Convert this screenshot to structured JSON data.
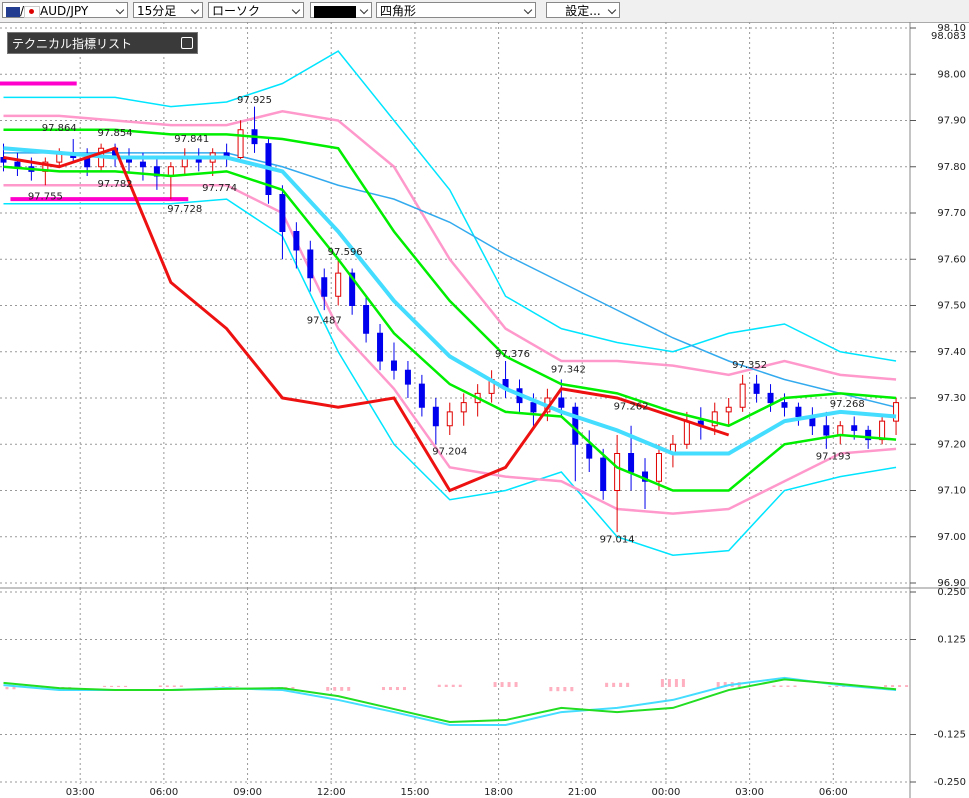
{
  "toolbar": {
    "symbol": "AUD/JPY",
    "timeframe": "15分足",
    "chart_style": "ローソク",
    "shape": "四角形",
    "settings_button": "設定..."
  },
  "panel": {
    "title": "テクニカル指標リスト"
  },
  "chart_data": [
    {
      "type": "candlestick",
      "xlim": [
        -0.5,
        130
      ],
      "ylim": [
        96.9,
        98.1
      ],
      "yticks": [
        {
          "value": 98.1,
          "label": "98.10"
        },
        {
          "value": 98.0,
          "label": "98.00"
        },
        {
          "value": 97.9,
          "label": "97.90"
        },
        {
          "value": 97.8,
          "label": "97.80"
        },
        {
          "value": 97.7,
          "label": "97.70"
        },
        {
          "value": 97.6,
          "label": "97.60"
        },
        {
          "value": 97.5,
          "label": "97.50"
        },
        {
          "value": 97.4,
          "label": "97.40"
        },
        {
          "value": 97.3,
          "label": "97.30"
        },
        {
          "value": 97.2,
          "label": "97.20"
        },
        {
          "value": 97.1,
          "label": "97.10"
        },
        {
          "value": 97.0,
          "label": "97.00"
        },
        {
          "value": 96.9,
          "label": "96.90"
        }
      ],
      "xticks": [
        11,
        23,
        35,
        47,
        59,
        71,
        83,
        95,
        107,
        119
      ],
      "price_marker": 98.083,
      "up_color": "#e00000",
      "down_color": "#0000ee",
      "x": [
        0,
        2,
        4,
        6,
        8,
        10,
        12,
        14,
        16,
        18,
        20,
        22,
        24,
        26,
        28,
        30,
        32,
        34,
        36,
        38,
        40,
        42,
        44,
        46,
        48,
        50,
        52,
        54,
        56,
        58,
        60,
        62,
        64,
        66,
        68,
        70,
        72,
        74,
        76,
        78,
        80,
        82,
        84,
        86,
        88,
        90,
        92,
        94,
        96,
        98,
        100,
        102,
        104,
        106,
        108,
        110,
        112,
        114,
        116,
        118,
        120,
        122,
        124,
        126,
        128
      ],
      "open": [
        97.82,
        97.81,
        97.8,
        97.79,
        97.81,
        97.83,
        97.82,
        97.8,
        97.84,
        97.82,
        97.81,
        97.8,
        97.78,
        97.8,
        97.82,
        97.81,
        97.83,
        97.82,
        97.88,
        97.85,
        97.74,
        97.66,
        97.62,
        97.56,
        97.52,
        97.57,
        97.5,
        97.44,
        97.38,
        97.36,
        97.33,
        97.28,
        97.24,
        97.27,
        97.29,
        97.31,
        97.34,
        97.32,
        97.29,
        97.27,
        97.3,
        97.28,
        97.2,
        97.17,
        97.1,
        97.18,
        97.14,
        97.12,
        97.18,
        97.2,
        97.25,
        97.24,
        97.27,
        97.28,
        97.33,
        97.31,
        97.29,
        97.28,
        97.26,
        97.24,
        97.22,
        97.24,
        97.23,
        97.21,
        97.25
      ],
      "high": [
        97.85,
        97.83,
        97.82,
        97.82,
        97.84,
        97.86,
        97.84,
        97.85,
        97.85,
        97.84,
        97.83,
        97.82,
        97.81,
        97.84,
        97.84,
        97.84,
        97.85,
        97.9,
        97.93,
        97.86,
        97.76,
        97.68,
        97.64,
        97.58,
        97.6,
        97.58,
        97.52,
        97.46,
        97.42,
        97.38,
        97.35,
        97.3,
        97.29,
        97.31,
        97.33,
        97.36,
        97.38,
        97.34,
        97.31,
        97.32,
        97.34,
        97.29,
        97.23,
        97.19,
        97.22,
        97.24,
        97.17,
        97.2,
        97.22,
        97.27,
        97.28,
        97.29,
        97.3,
        97.35,
        97.35,
        97.33,
        97.31,
        97.29,
        97.28,
        97.27,
        97.25,
        97.26,
        97.24,
        97.26,
        97.3
      ],
      "low": [
        97.79,
        97.78,
        97.77,
        97.76,
        97.8,
        97.81,
        97.78,
        97.79,
        97.8,
        97.79,
        97.77,
        97.75,
        97.73,
        97.78,
        97.79,
        97.78,
        97.8,
        97.81,
        97.83,
        97.72,
        97.6,
        97.58,
        97.53,
        97.49,
        97.5,
        97.48,
        97.42,
        97.36,
        97.34,
        97.3,
        97.26,
        97.2,
        97.22,
        97.24,
        97.26,
        97.29,
        97.3,
        97.27,
        97.24,
        97.25,
        97.26,
        97.12,
        97.14,
        97.08,
        97.01,
        97.1,
        97.06,
        97.1,
        97.15,
        97.19,
        97.21,
        97.22,
        97.24,
        97.27,
        97.29,
        97.27,
        97.26,
        97.24,
        97.22,
        97.19,
        97.2,
        97.21,
        97.19,
        97.2,
        97.22
      ],
      "close": [
        97.81,
        97.8,
        97.79,
        97.81,
        97.83,
        97.82,
        97.8,
        97.84,
        97.82,
        97.81,
        97.8,
        97.78,
        97.8,
        97.82,
        97.81,
        97.83,
        97.82,
        97.88,
        97.85,
        97.74,
        97.66,
        97.62,
        97.56,
        97.52,
        97.57,
        97.5,
        97.44,
        97.38,
        97.36,
        97.33,
        97.28,
        97.24,
        97.27,
        97.29,
        97.31,
        97.34,
        97.32,
        97.29,
        97.27,
        97.3,
        97.28,
        97.2,
        97.17,
        97.1,
        97.18,
        97.14,
        97.12,
        97.18,
        97.2,
        97.25,
        97.24,
        97.27,
        97.28,
        97.33,
        97.31,
        97.29,
        97.28,
        97.26,
        97.24,
        97.22,
        97.24,
        97.23,
        97.21,
        97.25,
        97.29
      ],
      "series": [
        {
          "color": "#00e5ff",
          "width": 1.5,
          "x": [
            0,
            8,
            16,
            24,
            32,
            40,
            48,
            56,
            64,
            72,
            80,
            88,
            96,
            104,
            112,
            120,
            128
          ],
          "values": [
            97.95,
            97.95,
            97.95,
            97.93,
            97.94,
            97.98,
            98.05,
            97.9,
            97.75,
            97.52,
            97.45,
            97.42,
            97.4,
            97.44,
            97.46,
            97.4,
            97.38
          ]
        },
        {
          "color": "#00e5ff",
          "width": 1.5,
          "x": [
            0,
            8,
            16,
            24,
            32,
            40,
            48,
            56,
            64,
            72,
            80,
            88,
            96,
            104,
            112,
            120,
            128
          ],
          "values": [
            97.72,
            97.72,
            97.72,
            97.72,
            97.73,
            97.65,
            97.4,
            97.2,
            97.08,
            97.1,
            97.14,
            97.0,
            96.96,
            96.97,
            97.1,
            97.13,
            97.15
          ]
        },
        {
          "color": "#ff99cc",
          "width": 2.5,
          "x": [
            0,
            8,
            16,
            24,
            32,
            40,
            48,
            56,
            64,
            72,
            80,
            88,
            96,
            104,
            112,
            120,
            128
          ],
          "values": [
            97.91,
            97.91,
            97.9,
            97.89,
            97.89,
            97.92,
            97.9,
            97.8,
            97.6,
            97.45,
            97.38,
            97.38,
            97.37,
            97.35,
            97.38,
            97.35,
            97.34
          ]
        },
        {
          "color": "#ff99cc",
          "width": 2.5,
          "x": [
            0,
            8,
            16,
            24,
            32,
            40,
            48,
            56,
            64,
            72,
            80,
            88,
            96,
            104,
            112,
            120,
            128
          ],
          "values": [
            97.76,
            97.76,
            97.76,
            97.76,
            97.76,
            97.7,
            97.45,
            97.32,
            97.15,
            97.13,
            97.12,
            97.06,
            97.05,
            97.06,
            97.12,
            97.18,
            97.19
          ]
        },
        {
          "color": "#33aaee",
          "width": 1.5,
          "x": [
            0,
            8,
            16,
            24,
            32,
            40,
            48,
            56,
            64,
            72,
            80,
            88,
            96,
            104,
            112,
            120,
            128
          ],
          "values": [
            97.83,
            97.83,
            97.83,
            97.83,
            97.83,
            97.8,
            97.76,
            97.73,
            97.68,
            97.61,
            97.55,
            97.49,
            97.43,
            97.38,
            97.34,
            97.31,
            97.28
          ]
        },
        {
          "color": "#00ee00",
          "width": 2.5,
          "x": [
            0,
            8,
            16,
            24,
            32,
            40,
            48,
            56,
            64,
            72,
            80,
            88,
            96,
            104,
            112,
            120,
            128
          ],
          "values": [
            97.88,
            97.88,
            97.88,
            97.87,
            97.87,
            97.86,
            97.84,
            97.66,
            97.51,
            97.39,
            97.33,
            97.31,
            97.27,
            97.24,
            97.3,
            97.31,
            97.3
          ]
        },
        {
          "color": "#00ee00",
          "width": 2.5,
          "x": [
            0,
            8,
            16,
            24,
            32,
            40,
            48,
            56,
            64,
            72,
            80,
            88,
            96,
            104,
            112,
            120,
            128
          ],
          "values": [
            97.8,
            97.79,
            97.79,
            97.78,
            97.79,
            97.75,
            97.6,
            97.44,
            97.33,
            97.27,
            97.26,
            97.15,
            97.1,
            97.1,
            97.2,
            97.22,
            97.21
          ]
        },
        {
          "color": "#44ddff",
          "width": 4,
          "x": [
            0,
            8,
            16,
            24,
            32,
            40,
            48,
            56,
            64,
            72,
            80,
            88,
            96,
            104,
            112,
            120,
            128
          ],
          "values": [
            97.84,
            97.83,
            97.82,
            97.82,
            97.82,
            97.79,
            97.66,
            97.51,
            97.39,
            97.32,
            97.27,
            97.23,
            97.18,
            97.18,
            97.25,
            97.27,
            97.26
          ]
        },
        {
          "color": "#ee1111",
          "width": 3,
          "x": [
            0,
            8,
            16,
            24,
            32,
            40,
            48,
            56,
            64,
            72,
            80,
            88,
            96,
            104,
            112,
            120,
            128
          ],
          "values": [
            97.82,
            97.8,
            97.84,
            97.55,
            97.45,
            97.3,
            97.28,
            97.3,
            97.1,
            97.15,
            97.32,
            97.3,
            97.26,
            97.22,
            null,
            null,
            null
          ]
        }
      ],
      "levels": [
        {
          "value": 97.98,
          "x": [
            -0.5,
            10.5
          ],
          "color": "#ff00cc"
        },
        {
          "value": 97.73,
          "x": [
            1,
            26.5
          ],
          "color": "#ff00cc"
        }
      ],
      "annotations": [
        {
          "x": 8,
          "value": 97.864,
          "pos": "above"
        },
        {
          "x": 16,
          "value": 97.854,
          "pos": "above"
        },
        {
          "x": 27,
          "value": 97.841,
          "pos": "above"
        },
        {
          "x": 16,
          "value": 97.782,
          "pos": "below"
        },
        {
          "x": 31,
          "value": 97.774,
          "pos": "below"
        },
        {
          "x": 6,
          "value": 97.755,
          "pos": "below"
        },
        {
          "x": 26,
          "value": 97.728,
          "pos": "below"
        },
        {
          "x": 36,
          "value": 97.925,
          "pos": "above"
        },
        {
          "x": 49,
          "value": 97.596,
          "pos": "above"
        },
        {
          "x": 46,
          "value": 97.487,
          "pos": "below"
        },
        {
          "x": 73,
          "value": 97.376,
          "pos": "above"
        },
        {
          "x": 64,
          "value": 97.204,
          "pos": "below"
        },
        {
          "x": 81,
          "value": 97.342,
          "pos": "above"
        },
        {
          "x": 90,
          "value": 97.262,
          "pos": "above"
        },
        {
          "x": 88,
          "value": 97.014,
          "pos": "below"
        },
        {
          "x": 107,
          "value": 97.352,
          "pos": "above"
        },
        {
          "x": 121,
          "value": 97.268,
          "pos": "above"
        },
        {
          "x": 119,
          "value": 97.193,
          "pos": "below"
        }
      ]
    },
    {
      "type": "macd",
      "xlim": [
        -0.5,
        130
      ],
      "ylim": [
        -0.25,
        0.25
      ],
      "yticks": [
        {
          "value": 0.25,
          "label": "0.250"
        },
        {
          "value": 0.125,
          "label": "0.125"
        },
        {
          "value": -0.125,
          "label": "-0.125"
        },
        {
          "value": -0.25,
          "label": "-0.250"
        }
      ],
      "xticks": [
        {
          "value": 11,
          "label": "03:00"
        },
        {
          "value": 23,
          "label": "06:00"
        },
        {
          "value": 35,
          "label": "09:00"
        },
        {
          "value": 47,
          "label": "12:00"
        },
        {
          "value": 59,
          "label": "15:00"
        },
        {
          "value": 71,
          "label": "18:00"
        },
        {
          "value": 83,
          "label": "21:00"
        },
        {
          "value": 95,
          "label": "00:00"
        },
        {
          "value": 107,
          "label": "03:00"
        },
        {
          "value": 119,
          "label": "06:00"
        }
      ],
      "histogram": {
        "color": "#ffb0c0",
        "x": [
          0,
          8,
          16,
          24,
          32,
          40,
          48,
          56,
          64,
          72,
          80,
          88,
          96,
          104,
          112,
          120,
          128
        ],
        "values": [
          -0.006,
          -0.005,
          0.003,
          0.004,
          0.002,
          -0.005,
          -0.01,
          -0.008,
          0.006,
          0.013,
          -0.011,
          0.011,
          0.021,
          0.013,
          0.004,
          0.003,
          0.005
        ]
      },
      "series": [
        {
          "color": "#44ddff",
          "width": 2,
          "x": [
            0,
            8,
            16,
            24,
            32,
            40,
            48,
            56,
            64,
            72,
            80,
            88,
            96,
            104,
            112,
            120,
            128
          ],
          "values": [
            0.005,
            -0.008,
            -0.008,
            -0.008,
            -0.003,
            -0.008,
            -0.034,
            -0.066,
            -0.1,
            -0.1,
            -0.066,
            -0.055,
            -0.034,
            0.005,
            0.024,
            0.005,
            -0.008
          ]
        },
        {
          "color": "#22dd22",
          "width": 2,
          "x": [
            0,
            8,
            16,
            24,
            32,
            40,
            48,
            56,
            64,
            72,
            80,
            88,
            96,
            104,
            112,
            120,
            128
          ],
          "values": [
            0.011,
            -0.003,
            -0.008,
            -0.008,
            -0.005,
            -0.003,
            -0.024,
            -0.058,
            -0.092,
            -0.087,
            -0.055,
            -0.066,
            -0.055,
            -0.008,
            0.02,
            0.008,
            -0.006
          ]
        }
      ]
    }
  ]
}
